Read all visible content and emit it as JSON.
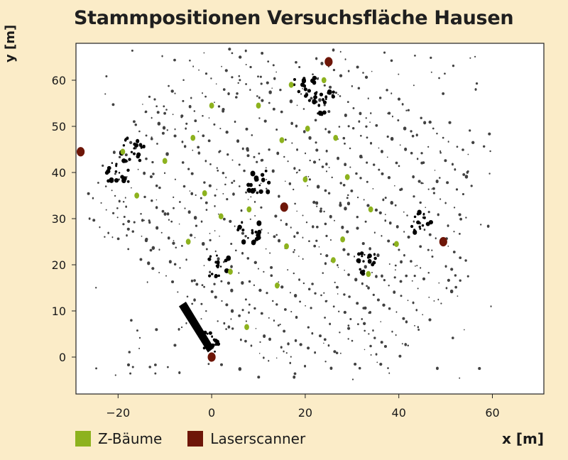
{
  "chart_data": {
    "type": "scatter",
    "title": "Stammpositionen Versuchsfläche Hausen",
    "xlabel": "x [m]",
    "ylabel": "y [m]",
    "xlim": [
      -29,
      71
    ],
    "ylim": [
      -8,
      68
    ],
    "xticks": [
      -20,
      0,
      20,
      40,
      60
    ],
    "yticks": [
      0,
      10,
      20,
      30,
      40,
      50,
      60
    ],
    "grid": false,
    "legend_position": "bottom-left",
    "series": [
      {
        "name": "Z-Bäume",
        "color": "#8db21e",
        "points": [
          [
            0,
            54.5
          ],
          [
            10,
            54.5
          ],
          [
            17,
            59
          ],
          [
            24,
            60
          ],
          [
            -4,
            47.5
          ],
          [
            15,
            47
          ],
          [
            20.5,
            49.5
          ],
          [
            26.5,
            47.5
          ],
          [
            -19,
            44.5
          ],
          [
            -10,
            42.5
          ],
          [
            20,
            38.5
          ],
          [
            29,
            39
          ],
          [
            -16,
            35
          ],
          [
            -1.5,
            35.5
          ],
          [
            2,
            30.5
          ],
          [
            8,
            32
          ],
          [
            34,
            32
          ],
          [
            -5,
            25
          ],
          [
            16,
            24
          ],
          [
            28,
            25.5
          ],
          [
            39.5,
            24.5
          ],
          [
            26,
            21
          ],
          [
            4,
            18.5
          ],
          [
            14,
            15.5
          ],
          [
            33.5,
            18
          ],
          [
            7.5,
            6.5
          ]
        ]
      },
      {
        "name": "Laserscanner",
        "color": "#6e1608",
        "points": [
          [
            -28,
            44.5
          ],
          [
            25,
            64
          ],
          [
            15.5,
            32.5
          ],
          [
            49.5,
            25
          ],
          [
            0,
            0
          ]
        ]
      }
    ]
  }
}
